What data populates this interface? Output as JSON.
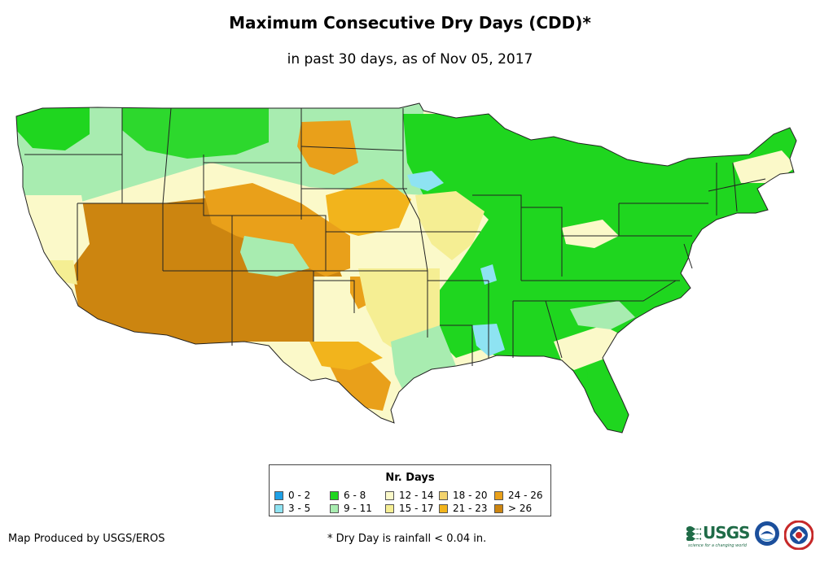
{
  "header": {
    "title": "Maximum Consecutive Dry Days (CDD)*",
    "subtitle": "in past 30 days, as of Nov 05, 2017"
  },
  "legend": {
    "title": "Nr. Days",
    "items": [
      {
        "label": "0 - 2",
        "color": "#1ea0e6"
      },
      {
        "label": "3 - 5",
        "color": "#8ee3f2"
      },
      {
        "label": "6 - 8",
        "color": "#1fd61f"
      },
      {
        "label": "9 - 11",
        "color": "#a8ecb0"
      },
      {
        "label": "12 - 14",
        "color": "#fbf9c9"
      },
      {
        "label": "15 - 17",
        "color": "#f5ee93"
      },
      {
        "label": "18 - 20",
        "color": "#f3d36e"
      },
      {
        "label": "21 - 23",
        "color": "#f2b41c"
      },
      {
        "label": "24 - 26",
        "color": "#e9a01a"
      },
      {
        "label": "> 26",
        "color": "#cc8510"
      }
    ]
  },
  "footer": {
    "credit": "Map Produced by USGS/EROS",
    "footnote": "* Dry Day is rainfall < 0.04 in.",
    "usgs_logo_text": "USGS",
    "usgs_tagline": "science for a changing world"
  },
  "colors": {
    "border": "#222222",
    "ocean": "#ffffff",
    "usgs_green": "#1f6b47",
    "noaa_blue": "#1b4f9c"
  }
}
